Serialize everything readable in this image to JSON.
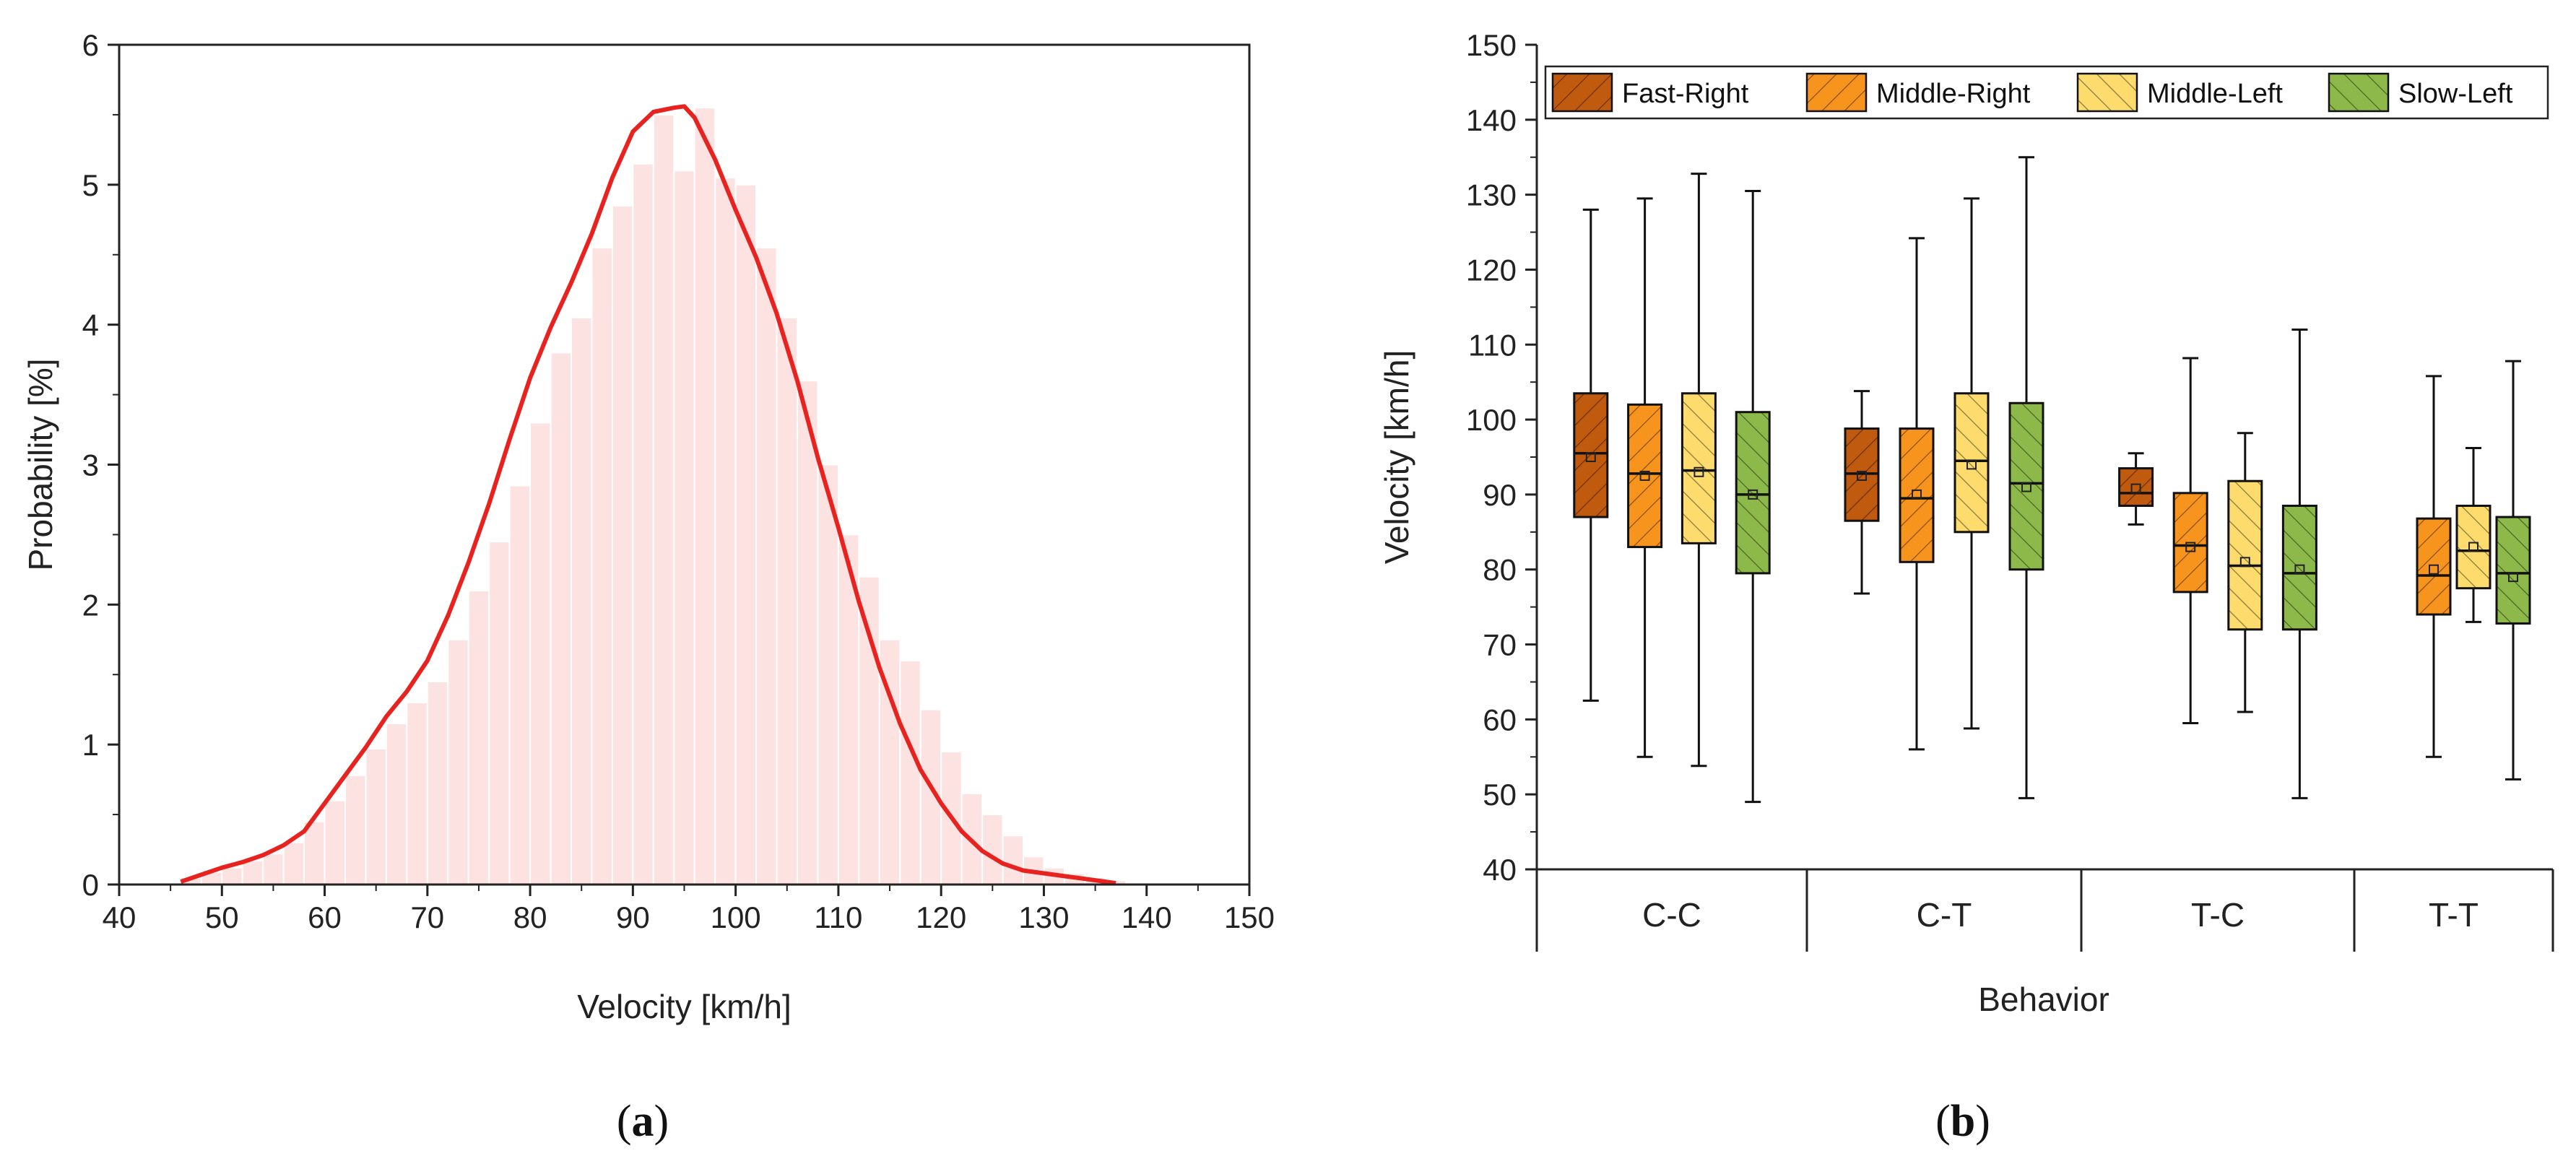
{
  "chart_data": [
    {
      "panel": "a",
      "type": "bar",
      "title": "",
      "xlabel": "Velocity [km/h]",
      "ylabel": "Probability [%]",
      "xlim": [
        40,
        150
      ],
      "ylim": [
        0,
        6
      ],
      "xticks": [
        40,
        50,
        60,
        70,
        80,
        90,
        100,
        110,
        120,
        130,
        140,
        150
      ],
      "yticks": [
        0,
        1,
        2,
        3,
        4,
        5,
        6
      ],
      "bin_width": 2,
      "bins_start": [
        46,
        48,
        50,
        52,
        54,
        56,
        58,
        60,
        62,
        64,
        66,
        68,
        70,
        72,
        74,
        76,
        78,
        80,
        82,
        84,
        86,
        88,
        90,
        92,
        94,
        96,
        98,
        100,
        102,
        104,
        106,
        108,
        110,
        112,
        114,
        116,
        118,
        120,
        122,
        124,
        126,
        128,
        130,
        132,
        134,
        136
      ],
      "values": [
        0.05,
        0.09,
        0.12,
        0.17,
        0.22,
        0.3,
        0.45,
        0.6,
        0.78,
        0.97,
        1.15,
        1.3,
        1.45,
        1.75,
        2.1,
        2.45,
        2.85,
        3.3,
        3.8,
        4.05,
        4.55,
        4.85,
        5.15,
        5.5,
        5.1,
        5.55,
        5.05,
        5.0,
        4.55,
        4.05,
        3.6,
        3.0,
        2.5,
        2.2,
        1.75,
        1.6,
        1.25,
        0.95,
        0.65,
        0.5,
        0.35,
        0.2,
        0.12,
        0.08,
        0.05,
        0.03
      ],
      "curve": {
        "name": "density",
        "color": "#e8231f",
        "x": [
          46,
          48,
          50,
          52,
          54,
          56,
          58,
          60,
          62,
          64,
          66,
          68,
          70,
          72,
          74,
          76,
          78,
          80,
          82,
          84,
          86,
          88,
          90,
          92,
          94,
          95,
          96,
          98,
          100,
          102,
          104,
          106,
          108,
          110,
          112,
          114,
          116,
          118,
          120,
          122,
          124,
          126,
          128,
          130,
          132,
          134,
          136,
          137
        ],
        "y": [
          0.02,
          0.07,
          0.12,
          0.16,
          0.21,
          0.28,
          0.38,
          0.58,
          0.78,
          0.98,
          1.2,
          1.38,
          1.6,
          1.92,
          2.3,
          2.72,
          3.18,
          3.62,
          3.98,
          4.3,
          4.65,
          5.05,
          5.38,
          5.52,
          5.55,
          5.56,
          5.48,
          5.18,
          4.82,
          4.48,
          4.08,
          3.6,
          3.05,
          2.55,
          2.02,
          1.55,
          1.15,
          0.82,
          0.58,
          0.38,
          0.24,
          0.15,
          0.1,
          0.08,
          0.06,
          0.04,
          0.02,
          0.01
        ]
      },
      "bar_color": "#fde2e2",
      "panel_label": "(a)"
    },
    {
      "panel": "b",
      "type": "box",
      "title": "",
      "xlabel": "Behavior",
      "ylabel": "Velocity [km/h]",
      "ylim": [
        40,
        150
      ],
      "yticks": [
        40,
        50,
        60,
        70,
        80,
        90,
        100,
        110,
        120,
        130,
        140,
        150
      ],
      "categories": [
        "C-C",
        "C-T",
        "T-C",
        "T-T"
      ],
      "series": [
        {
          "name": "Fast-Right",
          "color": "#c05a0e",
          "hatch": "fwd",
          "boxes": [
            {
              "category": "C-C",
              "min": 62.5,
              "q1": 87,
              "median": 95.5,
              "mean": 95,
              "q3": 103.5,
              "max": 128
            },
            {
              "category": "C-T",
              "min": 76.8,
              "q1": 86.5,
              "median": 92.8,
              "mean": 92.5,
              "q3": 98.8,
              "max": 103.8
            },
            {
              "category": "T-C",
              "min": 86,
              "q1": 88.5,
              "median": 90.2,
              "mean": 90.8,
              "q3": 93.5,
              "max": 95.5
            }
          ]
        },
        {
          "name": "Middle-Right",
          "color": "#f7941e",
          "hatch": "fwd",
          "boxes": [
            {
              "category": "C-C",
              "min": 55,
              "q1": 83,
              "median": 92.8,
              "mean": 92.5,
              "q3": 102,
              "max": 129.5
            },
            {
              "category": "C-T",
              "min": 56,
              "q1": 81,
              "median": 89.5,
              "mean": 90,
              "q3": 98.8,
              "max": 124.2
            },
            {
              "category": "T-C",
              "min": 59.5,
              "q1": 77,
              "median": 83.2,
              "mean": 83,
              "q3": 90.2,
              "max": 108.2
            },
            {
              "category": "T-T",
              "min": 55,
              "q1": 74,
              "median": 79.2,
              "mean": 80,
              "q3": 86.8,
              "max": 105.8
            }
          ]
        },
        {
          "name": "Middle-Left",
          "color": "#fddb6d",
          "hatch": "back",
          "boxes": [
            {
              "category": "C-C",
              "min": 53.8,
              "q1": 83.5,
              "median": 93.2,
              "mean": 93,
              "q3": 103.5,
              "max": 132.8
            },
            {
              "category": "C-T",
              "min": 58.8,
              "q1": 85,
              "median": 94.5,
              "mean": 94,
              "q3": 103.5,
              "max": 129.5
            },
            {
              "category": "T-C",
              "min": 61,
              "q1": 72,
              "median": 80.5,
              "mean": 81,
              "q3": 91.8,
              "max": 98.2
            },
            {
              "category": "T-T",
              "min": 73,
              "q1": 77.5,
              "median": 82.5,
              "mean": 83,
              "q3": 88.5,
              "max": 96.2
            }
          ]
        },
        {
          "name": "Slow-Left",
          "color": "#8db84a",
          "hatch": "back",
          "boxes": [
            {
              "category": "C-C",
              "min": 49,
              "q1": 79.5,
              "median": 90,
              "mean": 90,
              "q3": 101,
              "max": 130.5
            },
            {
              "category": "C-T",
              "min": 49.5,
              "q1": 80,
              "median": 91.5,
              "mean": 91,
              "q3": 102.2,
              "max": 135
            },
            {
              "category": "T-C",
              "min": 49.5,
              "q1": 72,
              "median": 79.5,
              "mean": 80,
              "q3": 88.5,
              "max": 112
            },
            {
              "category": "T-T",
              "min": 52,
              "q1": 72.8,
              "median": 79.5,
              "mean": 79,
              "q3": 87,
              "max": 107.8
            }
          ]
        }
      ],
      "legend_position": "top",
      "panel_label": "(b)"
    }
  ],
  "panel_labels": {
    "a": {
      "open": "(",
      "letter": "a",
      "close": ")"
    },
    "b": {
      "open": "(",
      "letter": "b",
      "close": ")"
    }
  }
}
